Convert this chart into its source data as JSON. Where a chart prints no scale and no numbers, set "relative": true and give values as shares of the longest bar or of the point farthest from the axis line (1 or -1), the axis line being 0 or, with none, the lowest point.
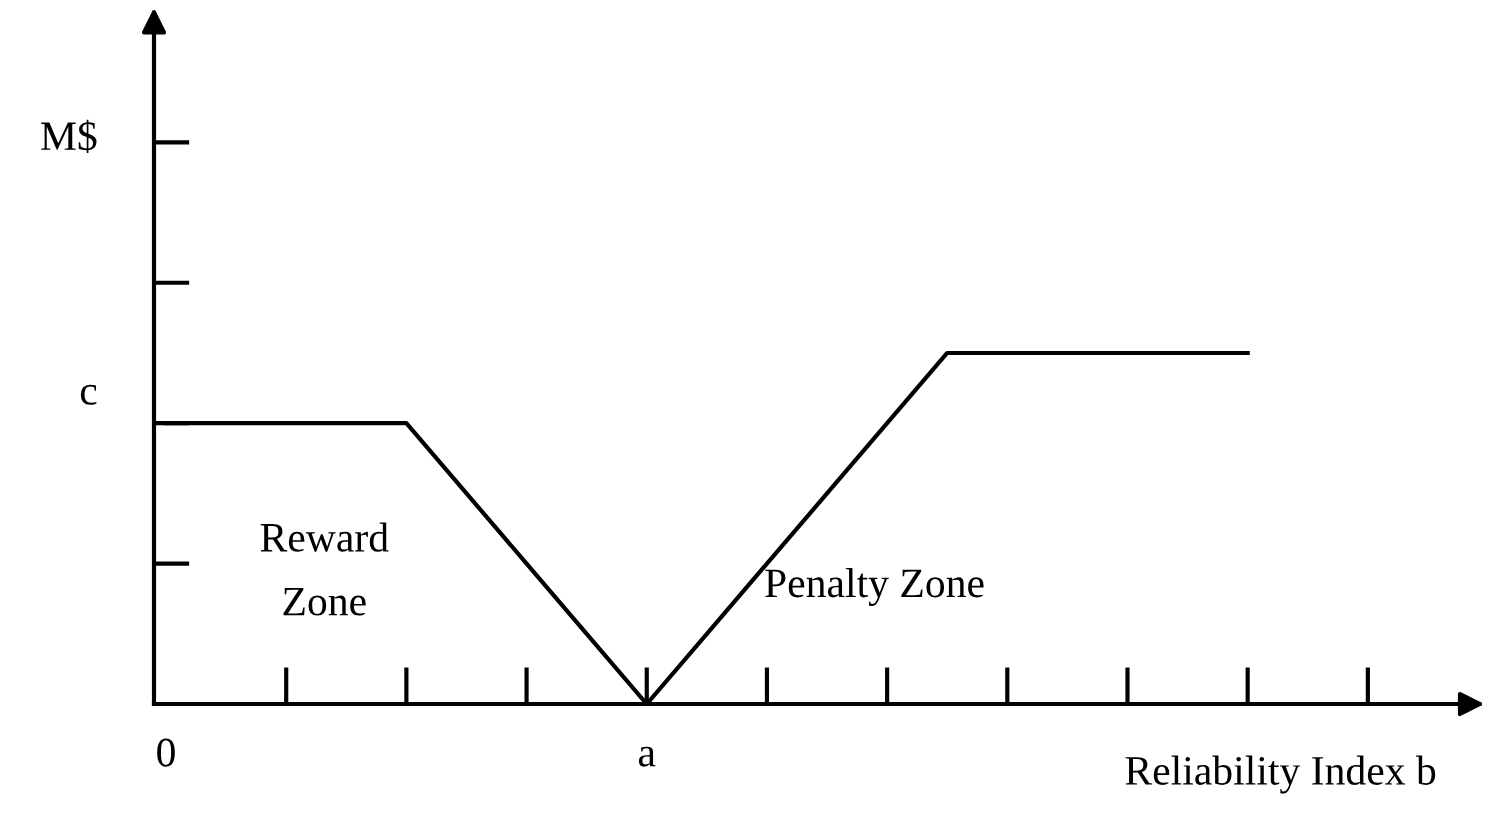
{
  "chart_data": {
    "type": "line",
    "xlabel": "Reliability Index b",
    "categories": [
      "0",
      null,
      null,
      null,
      null,
      null,
      null,
      null,
      "a",
      null,
      null,
      null,
      null,
      null,
      null,
      null,
      null,
      null,
      null,
      null,
      null,
      null
    ],
    "series": [
      {
        "color": "#000000",
        "values": [
          0.8,
          0.8,
          0.8,
          0.8,
          0.8,
          0.6,
          0.4,
          0.2,
          0,
          0.2,
          0.4,
          0.6,
          0.8,
          1,
          1,
          1,
          1,
          1,
          1,
          null,
          null,
          null
        ]
      }
    ],
    "relative": true,
    "annotations": [
      "M$",
      "c",
      "Reward\nZone",
      "Penalty Zone"
    ],
    "line_style": "solid"
  }
}
